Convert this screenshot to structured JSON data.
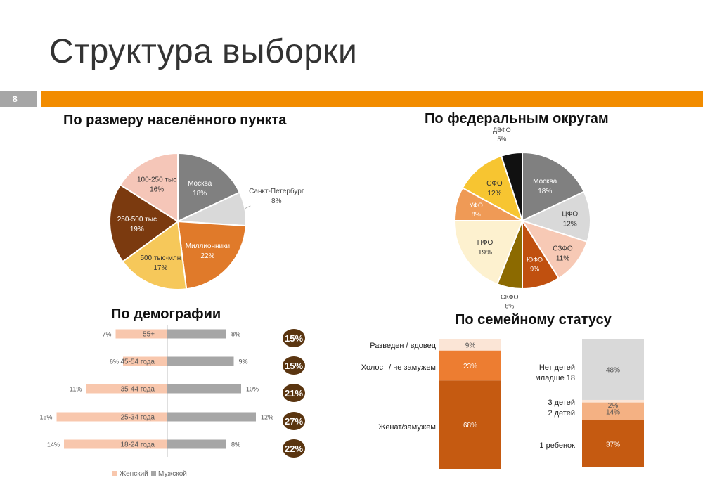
{
  "page": {
    "title": "Структура выборки",
    "page_number": "8"
  },
  "colors": {
    "accent": "#f28c00",
    "page_badge": "#a6a6a6"
  },
  "chart_data": [
    {
      "type": "pie",
      "title": "По размеру населённого пункта",
      "slices": [
        {
          "label": "Москва",
          "value": 18,
          "value_label": "18%",
          "color": "#808080",
          "label_color": "#ffffff"
        },
        {
          "label": "Санкт-Петербург",
          "value": 8,
          "value_label": "8%",
          "color": "#d9d9d9",
          "label_color": "#333333"
        },
        {
          "label": "Миллионники",
          "value": 22,
          "value_label": "22%",
          "color": "#e07a2a",
          "label_color": "#ffffff"
        },
        {
          "label": "500 тыс-млн",
          "value": 17,
          "value_label": "17%",
          "color": "#f6c85a",
          "label_color": "#333333"
        },
        {
          "label": "250-500 тыс",
          "value": 19,
          "value_label": "19%",
          "color": "#7b3a0f",
          "label_color": "#ffffff"
        },
        {
          "label": "100-250 тыс",
          "value": 16,
          "value_label": "16%",
          "color": "#f5c6b8",
          "label_color": "#333333"
        }
      ]
    },
    {
      "type": "pie",
      "title": "По федеральным округам",
      "slices": [
        {
          "label": "Москва",
          "value": 18,
          "value_label": "18%",
          "color": "#808080",
          "label_color": "#ffffff"
        },
        {
          "label": "ЦФО",
          "value": 12,
          "value_label": "12%",
          "color": "#d9d9d9",
          "label_color": "#333333"
        },
        {
          "label": "СЗФО",
          "value": 11,
          "value_label": "11%",
          "color": "#f7c9b5",
          "label_color": "#333333"
        },
        {
          "label": "ЮФО",
          "value": 9,
          "value_label": "9%",
          "color": "#c0500f",
          "label_color": "#ffffff"
        },
        {
          "label": "СКФО",
          "value": 6,
          "value_label": "6%",
          "color": "#8c6a00",
          "label_color": "#333333"
        },
        {
          "label": "ПФО",
          "value": 19,
          "value_label": "19%",
          "color": "#fdf1cf",
          "label_color": "#333333"
        },
        {
          "label": "УФО",
          "value": 8,
          "value_label": "8%",
          "color": "#ef9a56",
          "label_color": "#ffffff"
        },
        {
          "label": "СФО",
          "value": 12,
          "value_label": "12%",
          "color": "#f7c531",
          "label_color": "#333333"
        },
        {
          "label": "ДВФО",
          "value": 5,
          "value_label": "5%",
          "color": "#111111",
          "label_color": "#333333"
        }
      ]
    },
    {
      "type": "bar",
      "title": "По демографии",
      "categories": [
        "55+",
        "45-54 года",
        "35-44 года",
        "25-34 года",
        "18-24 года"
      ],
      "series": [
        {
          "name": "Женский",
          "values": [
            7,
            6,
            11,
            15,
            14
          ],
          "value_labels": [
            "7%",
            "6%",
            "11%",
            "15%",
            "14%"
          ],
          "color": "#f8c7ad"
        },
        {
          "name": "Мужской",
          "values": [
            8,
            9,
            10,
            12,
            8
          ],
          "value_labels": [
            "8%",
            "9%",
            "10%",
            "12%",
            "8%"
          ],
          "color": "#a6a6a6"
        }
      ],
      "totals": [
        "15%",
        "15%",
        "21%",
        "27%",
        "22%"
      ],
      "total_badge_color": "#5a3510",
      "legend_position": "bottom-left"
    },
    {
      "type": "bar",
      "title": "По семейному статусу",
      "stacks": [
        {
          "segments": [
            {
              "label": "Женат/замужем",
              "value": 68,
              "value_label": "68%",
              "color": "#c55a11"
            },
            {
              "label": "Холост / не замужем",
              "value": 23,
              "value_label": "23%",
              "color": "#ed7d31"
            },
            {
              "label": "Разведен / вдовец",
              "value": 9,
              "value_label": "9%",
              "color": "#fbe5d6"
            }
          ]
        },
        {
          "segments": [
            {
              "label": "1 ребенок",
              "value": 37,
              "value_label": "37%",
              "color": "#c55a11"
            },
            {
              "label": "2 детей",
              "value": 14,
              "value_label": "14%",
              "color": "#f4b183"
            },
            {
              "label": "3 детей",
              "value": 2,
              "value_label": "2%",
              "color": "#fbe5d6"
            },
            {
              "label": "Нет детей младше 18",
              "value": 48,
              "value_label": "48%",
              "color": "#d9d9d9"
            }
          ]
        }
      ]
    }
  ]
}
